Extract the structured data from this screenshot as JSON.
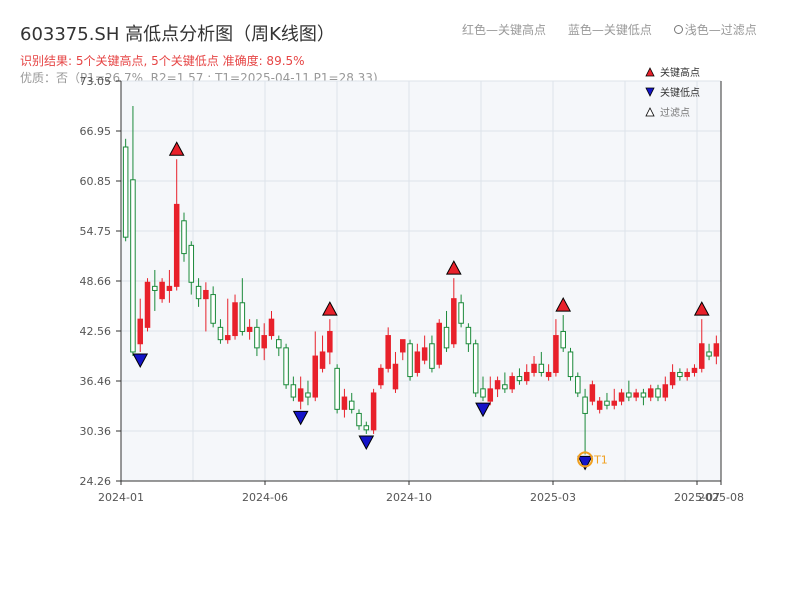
{
  "header": {
    "title": "603375.SH 高低点分析图（周K线图）",
    "subtitle": "识别结果: 5个关键高点, 5个关键低点  准确度: 89.5%",
    "quality": "优质：否（P1=26.7%, R2=1.57 ; T1=2025-04-11 P1=28.33)"
  },
  "top_legend": {
    "red": "红色—关键高点",
    "blue": "蓝色—关键低点",
    "light": "浅色—过滤点"
  },
  "colors": {
    "up": "#e8212b",
    "down": "#1b8a3a",
    "high_marker": "#e8212b",
    "low_marker": "#1414c8",
    "t1_ring": "#f0a020",
    "plot_bg": "#f5f7fa",
    "grid": "#dde3ea"
  },
  "chart_data": {
    "type": "candlestick",
    "y_ticks": [
      "24.26",
      "30.36",
      "36.46",
      "42.56",
      "48.66",
      "54.75",
      "60.85",
      "66.95",
      "73.05"
    ],
    "ylim": [
      24.26,
      73.05
    ],
    "x_ticks": [
      "2024-01",
      "2024-06",
      "2024-10",
      "2025-03",
      "2025-07",
      "2025-08"
    ],
    "grid": true,
    "legend": {
      "placement": "top-right",
      "entries": [
        {
          "label": "关键高点",
          "marker": "triangle-up",
          "color": "#e8212b"
        },
        {
          "label": "关键低点",
          "marker": "triangle-down",
          "color": "#1414c8"
        },
        {
          "label": "过滤点",
          "marker": "triangle-up-hollow",
          "color": "#ffffff"
        }
      ]
    },
    "candles": [
      [
        65.0,
        54.0,
        66.0,
        53.5
      ],
      [
        61.0,
        40.0,
        70.0,
        39.5
      ],
      [
        41.0,
        44.0,
        46.5,
        40.0
      ],
      [
        43.0,
        48.5,
        49.0,
        42.5
      ],
      [
        48.0,
        47.5,
        50.0,
        45.0
      ],
      [
        46.5,
        48.5,
        49.0,
        46.0
      ],
      [
        47.5,
        48.0,
        50.0,
        46.0
      ],
      [
        48.0,
        58.0,
        63.5,
        47.5
      ],
      [
        56.0,
        52.0,
        57.0,
        51.0
      ],
      [
        53.0,
        48.5,
        53.5,
        47.0
      ],
      [
        48.0,
        46.5,
        49.0,
        45.5
      ],
      [
        46.5,
        47.5,
        48.5,
        42.5
      ],
      [
        47.0,
        43.5,
        48.0,
        43.0
      ],
      [
        43.0,
        41.5,
        44.0,
        41.0
      ],
      [
        41.5,
        42.0,
        46.5,
        41.0
      ],
      [
        42.0,
        46.0,
        47.0,
        41.5
      ],
      [
        46.0,
        42.5,
        49.0,
        42.0
      ],
      [
        42.5,
        43.0,
        44.0,
        41.5
      ],
      [
        43.0,
        40.5,
        44.0,
        39.5
      ],
      [
        40.5,
        42.0,
        43.5,
        39.0
      ],
      [
        42.0,
        44.0,
        45.0,
        41.5
      ],
      [
        41.5,
        40.5,
        42.0,
        39.5
      ],
      [
        40.5,
        36.0,
        41.0,
        35.5
      ],
      [
        36.0,
        34.5,
        37.0,
        34.0
      ],
      [
        34.0,
        35.5,
        37.0,
        33.0
      ],
      [
        35.0,
        34.5,
        36.5,
        33.5
      ],
      [
        34.5,
        39.5,
        42.5,
        34.0
      ],
      [
        38.0,
        40.0,
        42.0,
        37.5
      ],
      [
        40.0,
        42.5,
        44.0,
        38.5
      ],
      [
        38.0,
        33.0,
        38.5,
        32.5
      ],
      [
        33.0,
        34.5,
        35.5,
        32.0
      ],
      [
        34.0,
        33.0,
        35.0,
        32.5
      ],
      [
        32.5,
        31.0,
        33.0,
        30.5
      ],
      [
        31.0,
        30.5,
        31.5,
        30.0
      ],
      [
        30.5,
        35.0,
        35.5,
        30.0
      ],
      [
        36.0,
        38.0,
        38.5,
        35.5
      ],
      [
        38.0,
        42.0,
        43.0,
        37.5
      ],
      [
        35.5,
        38.5,
        40.0,
        35.0
      ],
      [
        40.0,
        41.5,
        41.0,
        39.0
      ],
      [
        41.0,
        37.0,
        41.5,
        36.5
      ],
      [
        37.5,
        40.0,
        41.0,
        37.0
      ],
      [
        39.0,
        40.5,
        42.0,
        38.5
      ],
      [
        41.0,
        38.0,
        42.0,
        37.5
      ],
      [
        38.5,
        43.5,
        44.0,
        38.0
      ],
      [
        43.0,
        40.5,
        45.0,
        40.0
      ],
      [
        41.0,
        46.5,
        49.0,
        40.5
      ],
      [
        46.0,
        43.5,
        47.0,
        43.0
      ],
      [
        43.0,
        41.0,
        43.5,
        40.0
      ],
      [
        41.0,
        35.0,
        41.5,
        34.5
      ],
      [
        35.5,
        34.5,
        37.0,
        34.0
      ],
      [
        34.0,
        35.5,
        37.0,
        33.5
      ],
      [
        35.5,
        36.5,
        37.0,
        34.5
      ],
      [
        36.0,
        35.5,
        37.5,
        35.0
      ],
      [
        35.5,
        37.0,
        37.5,
        35.0
      ],
      [
        37.0,
        36.5,
        38.0,
        36.0
      ],
      [
        36.5,
        37.5,
        38.5,
        36.0
      ],
      [
        37.5,
        38.5,
        39.5,
        37.0
      ],
      [
        38.5,
        37.5,
        40.0,
        37.0
      ],
      [
        37.0,
        37.5,
        38.5,
        36.5
      ],
      [
        37.5,
        42.0,
        44.0,
        37.0
      ],
      [
        42.5,
        40.5,
        44.5,
        40.0
      ],
      [
        40.0,
        37.0,
        40.5,
        36.5
      ],
      [
        37.0,
        35.0,
        37.5,
        34.5
      ],
      [
        34.5,
        32.5,
        35.5,
        27.5
      ],
      [
        34.0,
        36.0,
        36.5,
        33.5
      ],
      [
        33.0,
        34.0,
        34.5,
        32.5
      ],
      [
        34.0,
        33.5,
        35.0,
        33.0
      ],
      [
        33.5,
        34.0,
        35.5,
        33.0
      ],
      [
        34.0,
        35.0,
        35.5,
        33.5
      ],
      [
        35.0,
        34.5,
        36.5,
        34.0
      ],
      [
        34.5,
        35.0,
        35.5,
        34.0
      ],
      [
        35.0,
        34.5,
        35.5,
        33.5
      ],
      [
        34.5,
        35.5,
        36.0,
        34.0
      ],
      [
        35.5,
        34.5,
        36.0,
        34.0
      ],
      [
        34.5,
        36.0,
        37.0,
        34.0
      ],
      [
        36.0,
        37.5,
        38.5,
        35.5
      ],
      [
        37.5,
        37.0,
        38.0,
        36.5
      ],
      [
        37.0,
        37.5,
        38.0,
        36.5
      ],
      [
        37.5,
        38.0,
        38.5,
        37.0
      ],
      [
        38.0,
        41.0,
        44.0,
        37.5
      ],
      [
        40.0,
        39.5,
        41.0,
        39.0
      ],
      [
        39.5,
        41.0,
        42.0,
        38.5
      ]
    ],
    "key_highs": [
      {
        "index": 7,
        "value": 63.5
      },
      {
        "index": 28,
        "value": 44.0
      },
      {
        "index": 45,
        "value": 49.0
      },
      {
        "index": 60,
        "value": 44.5
      },
      {
        "index": 79,
        "value": 44.0
      }
    ],
    "key_lows": [
      {
        "index": 2,
        "value": 40.0
      },
      {
        "index": 24,
        "value": 33.0
      },
      {
        "index": 33,
        "value": 30.0
      },
      {
        "index": 49,
        "value": 34.0
      },
      {
        "index": 63,
        "value": 27.5
      }
    ],
    "t1_point": {
      "index": 63,
      "value": 27.5,
      "label": "T1"
    }
  }
}
